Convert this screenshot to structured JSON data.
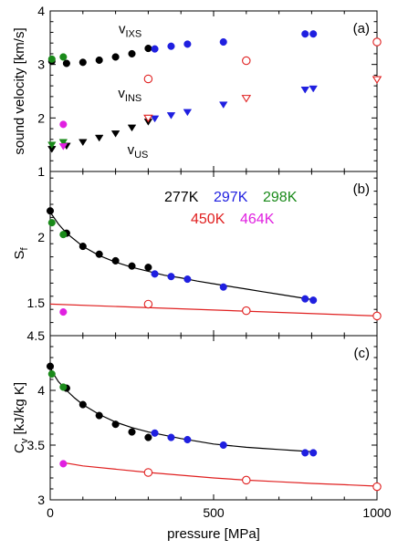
{
  "colors": {
    "277K": "#000000",
    "297K": "#1f1fe0",
    "298K": "#1a8a1a",
    "450K": "#e02020",
    "464K": "#e020e0"
  },
  "chart_data": {
    "type": "scatter",
    "shared_x": {
      "label": "pressure [MPa]",
      "lim": [
        0,
        1000
      ],
      "ticks": [
        0,
        500,
        1000
      ]
    },
    "legend": {
      "placement": "top-right of panel (b)",
      "entries": [
        "277K",
        "297K",
        "298K",
        "450K",
        "464K"
      ]
    },
    "panels": [
      {
        "letter": "(a)",
        "ylabel": "sound velocity [km/s]",
        "ylim": [
          1,
          4
        ],
        "yticks": [
          1,
          2,
          3,
          4
        ],
        "annotations": [
          {
            "main": "v",
            "sub": "IXS",
            "x": 280,
            "y": 3.58
          },
          {
            "main": "v",
            "sub": "INS",
            "x": 280,
            "y": 2.38
          },
          {
            "main": "v",
            "sub": "US",
            "x": 300,
            "y": 1.32
          }
        ],
        "series": [
          {
            "name": "277K v_IXS",
            "temp": "277K",
            "marker": "filled-circle",
            "x": [
              5,
              50,
              100,
              150,
              200,
              250,
              300
            ],
            "y": [
              3.06,
              3.02,
              3.04,
              3.08,
              3.14,
              3.2,
              3.3
            ]
          },
          {
            "name": "297K v_IXS",
            "temp": "297K",
            "marker": "filled-circle",
            "x": [
              320,
              370,
              420,
              530,
              780,
              805
            ],
            "y": [
              3.29,
              3.34,
              3.38,
              3.42,
              3.57,
              3.57
            ]
          },
          {
            "name": "298K v_IXS",
            "temp": "298K",
            "marker": "filled-circle",
            "x": [
              5,
              40
            ],
            "y": [
              3.1,
              3.14
            ]
          },
          {
            "name": "450K v_IXS",
            "temp": "450K",
            "marker": "open-circle",
            "x": [
              300,
              600,
              1000
            ],
            "y": [
              2.73,
              3.07,
              3.42
            ]
          },
          {
            "name": "464K v_IXS",
            "temp": "464K",
            "marker": "filled-circle",
            "x": [
              40
            ],
            "y": [
              1.88
            ]
          },
          {
            "name": "277K v_US",
            "temp": "277K",
            "marker": "filled-triangle-down",
            "x": [
              5,
              50,
              100,
              150,
              200,
              250,
              300
            ],
            "y": [
              1.42,
              1.48,
              1.55,
              1.63,
              1.71,
              1.82,
              1.93
            ]
          },
          {
            "name": "297K v_INS",
            "temp": "297K",
            "marker": "filled-triangle-down",
            "x": [
              320,
              370,
              420,
              530,
              780,
              805
            ],
            "y": [
              1.99,
              2.05,
              2.11,
              2.25,
              2.53,
              2.55
            ]
          },
          {
            "name": "298K v_US",
            "temp": "298K",
            "marker": "filled-triangle-down",
            "x": [
              5,
              40
            ],
            "y": [
              1.5,
              1.55
            ]
          },
          {
            "name": "450K v_INS",
            "temp": "450K",
            "marker": "open-triangle-down",
            "x": [
              300,
              600,
              1000
            ],
            "y": [
              2.0,
              2.37,
              2.72
            ]
          },
          {
            "name": "464K v_US",
            "temp": "464K",
            "marker": "filled-triangle-down",
            "x": [
              40
            ],
            "y": [
              1.47
            ]
          }
        ]
      },
      {
        "letter": "(b)",
        "ylabel": "S",
        "ylabel_sub": "f",
        "ylim": [
          1.25,
          2.5
        ],
        "yticks": [
          1.5,
          2
        ],
        "ytick_labels": [
          "1.5",
          "2"
        ],
        "top_tick_label": "",
        "fits": [
          {
            "temp": "277K",
            "x": [
              0,
              25,
              50,
              100,
              150,
              200,
              250,
              300,
              350,
              400,
              450,
              500,
              550,
              600,
              650,
              700,
              750,
              800,
              810
            ],
            "y": [
              2.19,
              2.1,
              2.03,
              1.93,
              1.86,
              1.81,
              1.77,
              1.74,
              1.71,
              1.69,
              1.665,
              1.645,
              1.625,
              1.605,
              1.585,
              1.565,
              1.545,
              1.525,
              1.52
            ]
          },
          {
            "temp": "450K",
            "x": [
              0,
              1000
            ],
            "y": [
              1.49,
              1.4
            ]
          }
        ],
        "series": [
          {
            "name": "277K",
            "temp": "277K",
            "marker": "filled-circle",
            "x": [
              0,
              50,
              100,
              150,
              200,
              250,
              300
            ],
            "y": [
              2.2,
              2.03,
              1.93,
              1.87,
              1.82,
              1.78,
              1.77
            ]
          },
          {
            "name": "297K",
            "temp": "297K",
            "marker": "filled-circle",
            "x": [
              320,
              370,
              420,
              530,
              780,
              805
            ],
            "y": [
              1.72,
              1.7,
              1.68,
              1.62,
              1.53,
              1.52
            ]
          },
          {
            "name": "298K",
            "temp": "298K",
            "marker": "filled-circle",
            "x": [
              5,
              40
            ],
            "y": [
              2.11,
              2.02
            ]
          },
          {
            "name": "450K",
            "temp": "450K",
            "marker": "open-circle",
            "x": [
              300,
              600,
              1000
            ],
            "y": [
              1.49,
              1.44,
              1.4
            ]
          },
          {
            "name": "464K",
            "temp": "464K",
            "marker": "filled-circle",
            "x": [
              40
            ],
            "y": [
              1.43
            ]
          }
        ]
      },
      {
        "letter": "(c)",
        "ylabel": "C",
        "ylabel_sub": "v",
        "ylabel_rest": " [kJ/kg K]",
        "ylim": [
          3,
          4.5
        ],
        "yticks": [
          3,
          3.5,
          4,
          4.5
        ],
        "ytick_labels": [
          "3",
          "3.5",
          "4",
          "4.5"
        ],
        "fits": [
          {
            "temp": "277K",
            "x": [
              0,
              10,
              25,
              50,
              75,
              100,
              150,
              200,
              250,
              300,
              350,
              400,
              450,
              500,
              550,
              600,
              650,
              700,
              750,
              800,
              810
            ],
            "y": [
              4.21,
              4.15,
              4.08,
              4.0,
              3.93,
              3.87,
              3.78,
              3.71,
              3.66,
              3.62,
              3.59,
              3.56,
              3.535,
              3.51,
              3.495,
              3.48,
              3.47,
              3.46,
              3.45,
              3.44,
              3.44
            ]
          },
          {
            "temp": "450K",
            "x": [
              40,
              100,
              200,
              300,
              400,
              500,
              600,
              700,
              800,
              900,
              1000
            ],
            "y": [
              3.34,
              3.31,
              3.28,
              3.25,
              3.225,
              3.2,
              3.18,
              3.165,
              3.15,
              3.138,
              3.125
            ]
          }
        ],
        "series": [
          {
            "name": "277K",
            "temp": "277K",
            "marker": "filled-circle",
            "x": [
              0,
              50,
              100,
              150,
              200,
              250,
              300
            ],
            "y": [
              4.22,
              4.02,
              3.87,
              3.77,
              3.69,
              3.62,
              3.57
            ]
          },
          {
            "name": "297K",
            "temp": "297K",
            "marker": "filled-circle",
            "x": [
              320,
              370,
              420,
              530,
              780,
              805
            ],
            "y": [
              3.61,
              3.57,
              3.55,
              3.5,
              3.43,
              3.43
            ]
          },
          {
            "name": "298K",
            "temp": "298K",
            "marker": "filled-circle",
            "x": [
              5,
              40
            ],
            "y": [
              4.15,
              4.03
            ]
          },
          {
            "name": "450K",
            "temp": "450K",
            "marker": "open-circle",
            "x": [
              300,
              600,
              1000
            ],
            "y": [
              3.25,
              3.18,
              3.12
            ]
          },
          {
            "name": "464K",
            "temp": "464K",
            "marker": "filled-circle",
            "x": [
              40
            ],
            "y": [
              3.33
            ]
          }
        ]
      }
    ]
  }
}
